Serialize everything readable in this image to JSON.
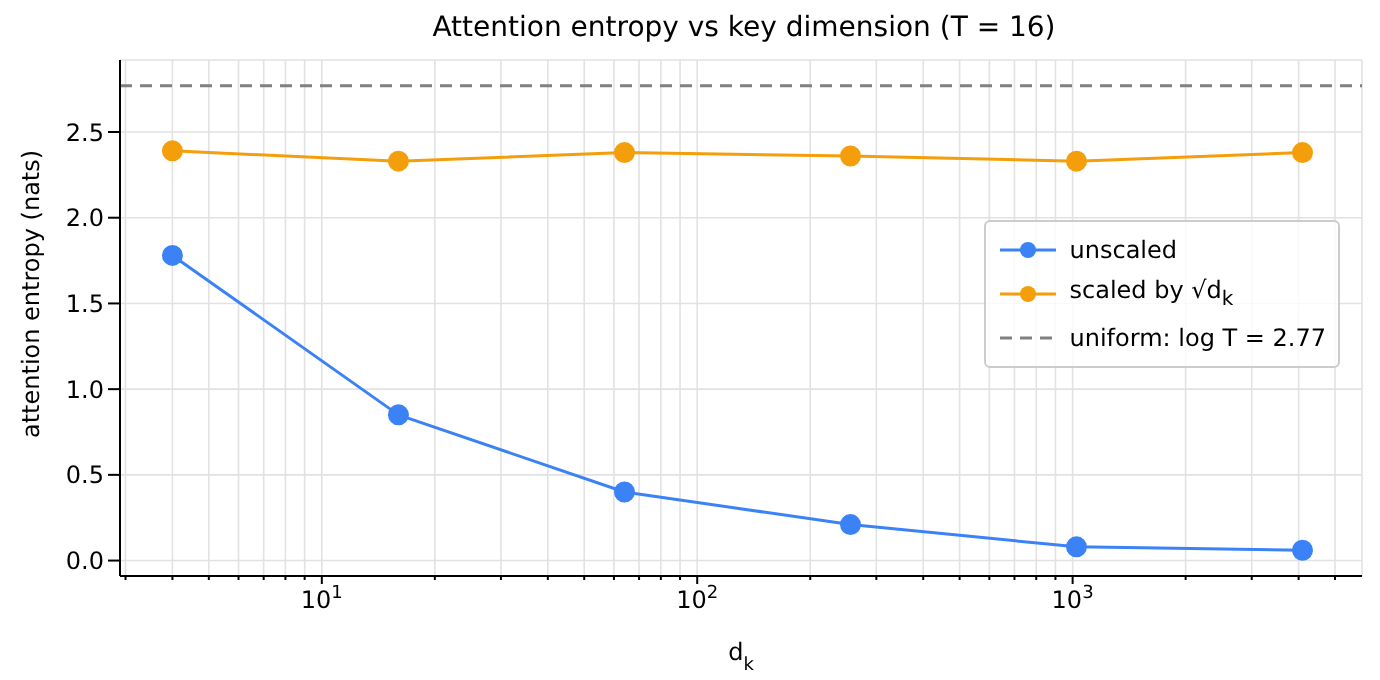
{
  "chart_data": {
    "type": "line",
    "title": "Attention entropy vs key dimension (T = 16)",
    "xlabel": "d$_{k}$",
    "ylabel": "attention entropy (nats)",
    "x": [
      4,
      16,
      64,
      256,
      1024,
      4096
    ],
    "series": [
      {
        "name": "unscaled",
        "color": "#3b82f6",
        "values": [
          1.78,
          0.85,
          0.4,
          0.21,
          0.08,
          0.06
        ]
      },
      {
        "name": "scaled by √d$_{k}$",
        "color": "#f59e0b",
        "values": [
          2.39,
          2.33,
          2.38,
          2.36,
          2.33,
          2.38
        ]
      }
    ],
    "ref_lines": [
      {
        "axis": "y",
        "value": 2.77,
        "label": "uniform: log T = 2.77",
        "color": "#808080",
        "line_style": "dashed"
      }
    ],
    "log": "x",
    "xlim": [
      2.9,
      5900
    ],
    "xticks": [
      {
        "value": 3,
        "label": null
      },
      {
        "value": 4,
        "label": null
      },
      {
        "value": 5,
        "label": null
      },
      {
        "value": 6,
        "label": null
      },
      {
        "value": 7,
        "label": null
      },
      {
        "value": 8,
        "label": null
      },
      {
        "value": 9,
        "label": null
      },
      {
        "value": 10,
        "label": "10$^{1}$"
      },
      {
        "value": 20,
        "label": null
      },
      {
        "value": 30,
        "label": null
      },
      {
        "value": 40,
        "label": null
      },
      {
        "value": 50,
        "label": null
      },
      {
        "value": 60,
        "label": null
      },
      {
        "value": 70,
        "label": null
      },
      {
        "value": 80,
        "label": null
      },
      {
        "value": 90,
        "label": null
      },
      {
        "value": 100,
        "label": "10$^{2}$"
      },
      {
        "value": 200,
        "label": null
      },
      {
        "value": 300,
        "label": null
      },
      {
        "value": 400,
        "label": null
      },
      {
        "value": 500,
        "label": null
      },
      {
        "value": 600,
        "label": null
      },
      {
        "value": 700,
        "label": null
      },
      {
        "value": 800,
        "label": null
      },
      {
        "value": 900,
        "label": null
      },
      {
        "value": 1000,
        "label": "10$^{3}$"
      },
      {
        "value": 2000,
        "label": null
      },
      {
        "value": 3000,
        "label": null
      },
      {
        "value": 4000,
        "label": null
      },
      {
        "value": 5000,
        "label": null
      }
    ],
    "ylim": [
      -0.09,
      2.92
    ],
    "yticks": [
      {
        "value": 0,
        "label": "0.0"
      },
      {
        "value": 0.5,
        "label": "0.5"
      },
      {
        "value": 1,
        "label": "1.0"
      },
      {
        "value": 1.5,
        "label": "1.5"
      },
      {
        "value": 2,
        "label": "2.0"
      },
      {
        "value": 2.5,
        "label": "2.5"
      }
    ],
    "grid": true,
    "legend": "center right",
    "marker": "circle",
    "line_style": "solid"
  }
}
